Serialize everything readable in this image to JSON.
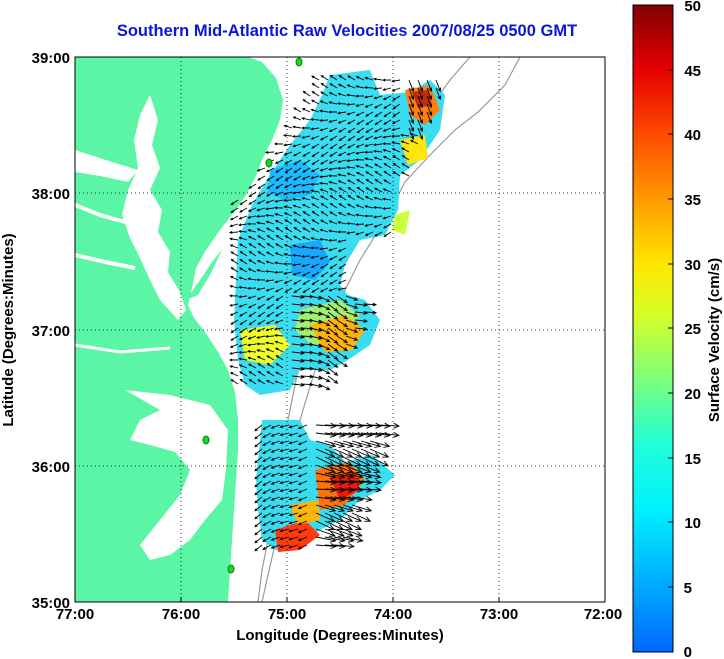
{
  "title": "Southern Mid-Atlantic Raw Velocities 2007/08/25 0500 GMT",
  "x_axis": {
    "label": "Longitude (Degrees:Minutes)",
    "ticks": [
      "77:00",
      "76:00",
      "75:00",
      "74:00",
      "73:00",
      "72:00"
    ]
  },
  "y_axis": {
    "label": "Latitude (Degrees:Minutes)",
    "ticks": [
      "39:00",
      "38:00",
      "37:00",
      "36:00",
      "35:00"
    ]
  },
  "colorbar": {
    "label": "Surface Velocity (cm/s)",
    "ticks": [
      "50",
      "45",
      "40",
      "35",
      "30",
      "25",
      "20",
      "15",
      "10",
      "5",
      "0"
    ],
    "min": 0,
    "max": 50,
    "colormap": "jet"
  },
  "map": {
    "lon_range": [
      -77,
      -72
    ],
    "lat_range": [
      35,
      39
    ],
    "land_color": "#5af5a5",
    "water_color": "#ffffff",
    "grid": "dotted",
    "station_color": "#22cc33"
  }
}
